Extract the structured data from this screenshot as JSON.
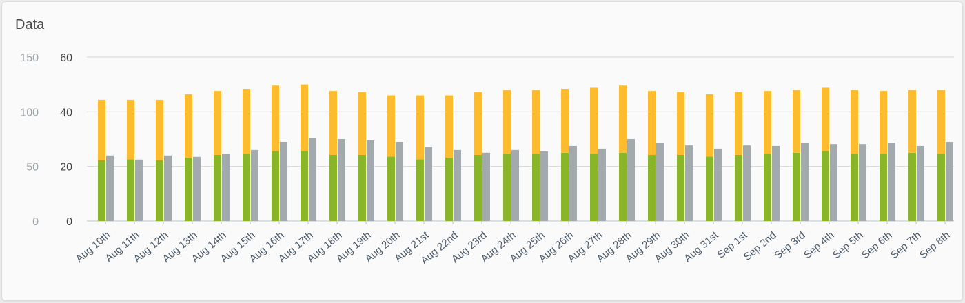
{
  "card": {
    "title": "Data"
  },
  "chart_data": {
    "type": "bar",
    "title": "Data",
    "categories": [
      "Aug 10th",
      "Aug 11th",
      "Aug 12th",
      "Aug 13th",
      "Aug 14th",
      "Aug 15th",
      "Aug 16th",
      "Aug 17th",
      "Aug 18th",
      "Aug 19th",
      "Aug 20th",
      "Aug 21st",
      "Aug 22nd",
      "Aug 23rd",
      "Aug 24th",
      "Aug 25th",
      "Aug 26th",
      "Aug 27th",
      "Aug 28th",
      "Aug 29th",
      "Aug 30th",
      "Aug 31st",
      "Sep 1st",
      "Sep 2nd",
      "Sep 3rd",
      "Sep 4th",
      "Sep 5th",
      "Sep 6th",
      "Sep 7th",
      "Sep 8th"
    ],
    "y_left": {
      "ticks": [
        "0",
        "50",
        "100",
        "150"
      ],
      "lim": [
        0,
        150
      ]
    },
    "y_right": {
      "ticks": [
        "0",
        "20",
        "40",
        "60"
      ],
      "lim": [
        0,
        60
      ]
    },
    "series": [
      {
        "axis": "left",
        "color": "#8ab529",
        "stack": "a",
        "values": [
          55.5,
          56.5,
          55.5,
          58,
          60.5,
          61.5,
          64,
          64,
          60.5,
          60.5,
          59,
          56.5,
          58,
          60.5,
          61.5,
          61.5,
          62.5,
          61.5,
          62.5,
          60.5,
          60.5,
          59,
          60.5,
          61.5,
          62.5,
          64,
          61.5,
          61.5,
          62.5,
          61.5
        ]
      },
      {
        "axis": "left",
        "color": "#fdbc2d",
        "stack": "a",
        "values": [
          55.5,
          54.5,
          55.5,
          58,
          58.5,
          59.5,
          60,
          61,
          58.5,
          57.5,
          56,
          58.5,
          57,
          57.5,
          58.5,
          58.5,
          58.5,
          60.5,
          61.5,
          58.5,
          57.5,
          57,
          57.5,
          57.5,
          57.5,
          58,
          58.5,
          57.5,
          57.5,
          58.5
        ]
      },
      {
        "axis": "right",
        "color": "#a2aaae",
        "values": [
          24,
          22.5,
          24,
          23.5,
          24.5,
          26,
          29,
          30.5,
          30,
          29.5,
          29,
          27,
          26,
          25,
          26,
          25.5,
          27.5,
          26.5,
          30,
          28.5,
          27.7,
          26.5,
          27.7,
          27.5,
          28.5,
          28.2,
          28.2,
          28.7,
          27.5,
          29
        ]
      }
    ],
    "grid": true,
    "legend": "none"
  }
}
